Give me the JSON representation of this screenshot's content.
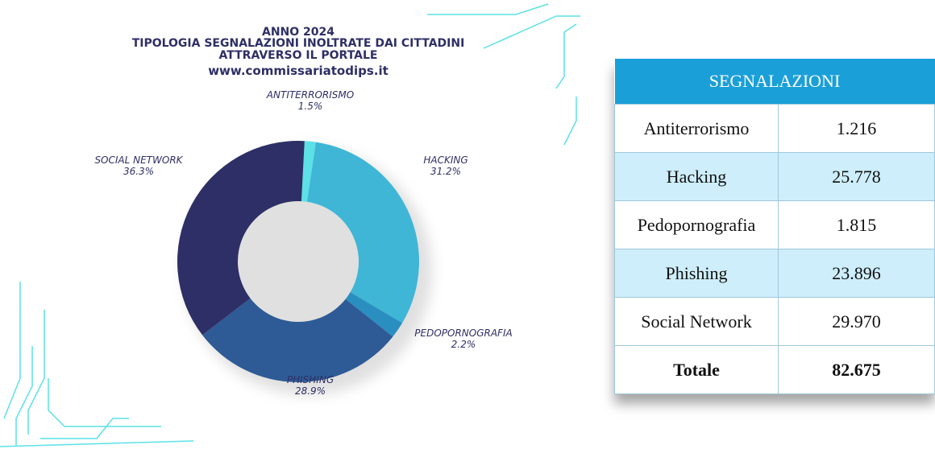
{
  "chart_data": {
    "type": "donut",
    "title": "ANNO 2024",
    "subtitle": [
      "TIPOLOGIA SEGNALAZIONI INOLTRATE DAI CITTADINI",
      "ATTRAVERSO IL PORTALE",
      "www.commissariatodips.it"
    ],
    "categories": [
      "ANTITERRORISMO",
      "HACKING",
      "PEDOPORNOGRAFIA",
      "PHISHING",
      "SOCIAL NETWORK"
    ],
    "values": [
      1.5,
      31.2,
      2.2,
      28.9,
      36.3
    ],
    "value_labels": [
      "1.5%",
      "31.2%",
      "2.2%",
      "28.9%",
      "36.3%"
    ],
    "colors": [
      "#5ce1e6",
      "#3fb6d6",
      "#2a8fc0",
      "#2e5b95",
      "#2e2f66"
    ]
  },
  "table": {
    "header": "SEGNALAZIONI",
    "rows": [
      [
        "Antiterrorismo",
        "1.216"
      ],
      [
        "Hacking",
        "25.778"
      ],
      [
        "Pedopornografia",
        "1.815"
      ],
      [
        "Phishing",
        "23.896"
      ],
      [
        "Social Network",
        "29.970"
      ]
    ],
    "total": [
      "Totale",
      "82.675"
    ]
  }
}
